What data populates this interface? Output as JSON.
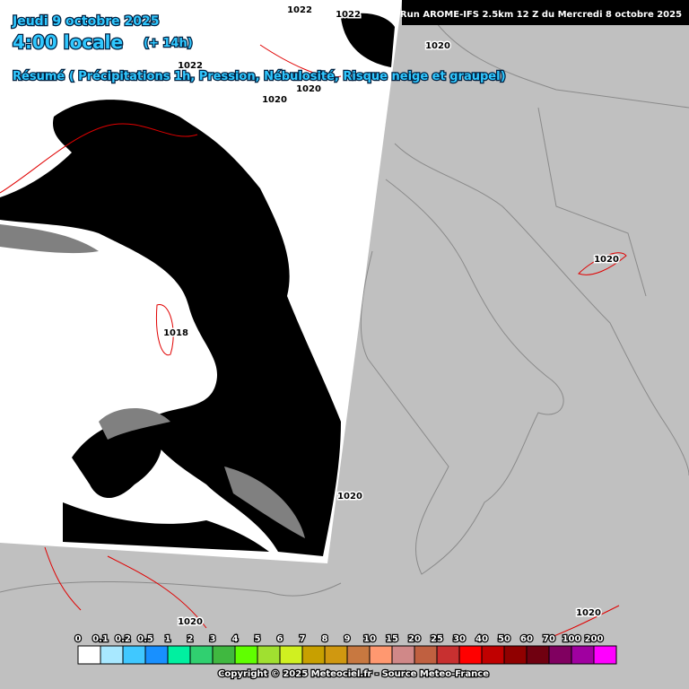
{
  "header": {
    "date": "Jeudi 9 octobre 2025",
    "time": "4:00 locale",
    "lead": "(+ 14h)",
    "summary": "Résumé ( Précipitations 1h, Pression, Nébulosité, Risque neige et graupel)",
    "run": "Run AROME-IFS 2.5km 12 Z du Mercredi 8 octobre 2025"
  },
  "isobar_labels": [
    "1022",
    "1022",
    "1020",
    "1022",
    "1020",
    "1020",
    "1020",
    "1018",
    "1020",
    "1020",
    "1020"
  ],
  "legend": {
    "values": [
      0,
      0.1,
      0.2,
      0.5,
      1,
      2,
      3,
      4,
      5,
      6,
      7,
      8,
      9,
      10,
      15,
      20,
      25,
      30,
      40,
      50,
      60,
      70,
      100,
      200
    ],
    "colors": [
      "#ffffff",
      "#a8e8ff",
      "#40c8ff",
      "#1890ff",
      "#00f0a0",
      "#30d070",
      "#40b840",
      "#60ff00",
      "#a0e030",
      "#d0f020",
      "#c8a000",
      "#d09810",
      "#c87840",
      "#ff9870",
      "#d08888",
      "#c06040",
      "#c83030",
      "#ff0000",
      "#c00000",
      "#900000",
      "#700010",
      "#800060",
      "#a000a0",
      "#ff00ff"
    ]
  },
  "footer": {
    "copyright": "Copyright © 2025 Meteociel.fr - Source Meteo-France"
  }
}
